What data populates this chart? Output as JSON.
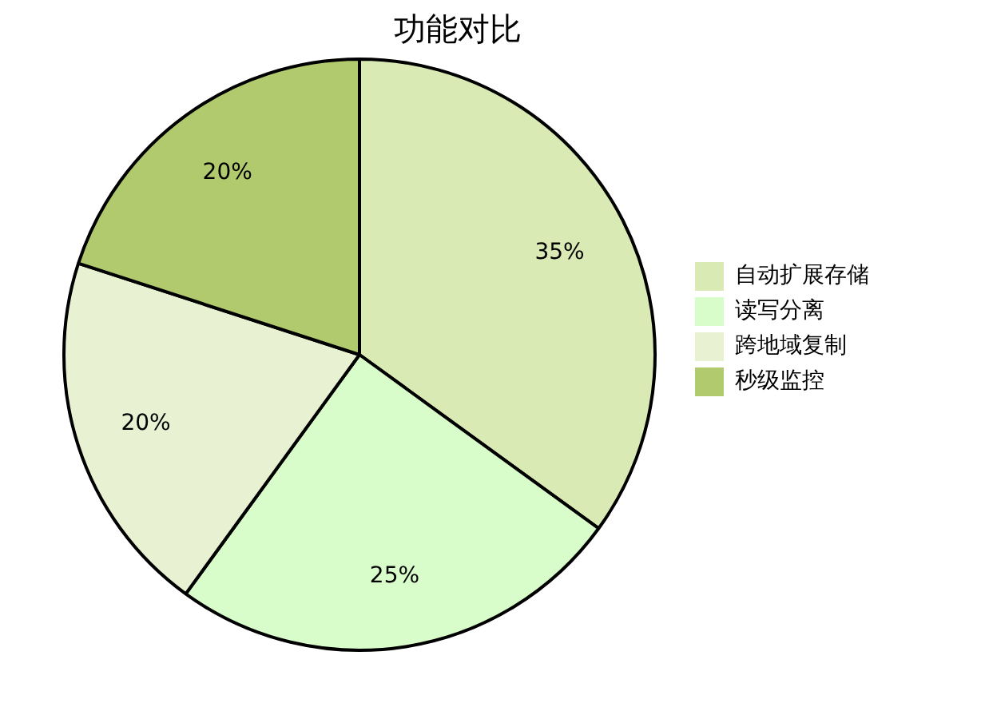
{
  "chart_data": {
    "type": "pie",
    "title": "功能对比",
    "categories": [
      "自动扩展存储",
      "读写分离",
      "跨地域复制",
      "秒级监控"
    ],
    "values": [
      35,
      25,
      20,
      20
    ],
    "colors": [
      "#d9eab5",
      "#d9fccb",
      "#e8f2d3",
      "#b2ca6e"
    ],
    "value_labels": [
      "35%",
      "25%",
      "20%",
      "20%"
    ],
    "legend": "right"
  }
}
